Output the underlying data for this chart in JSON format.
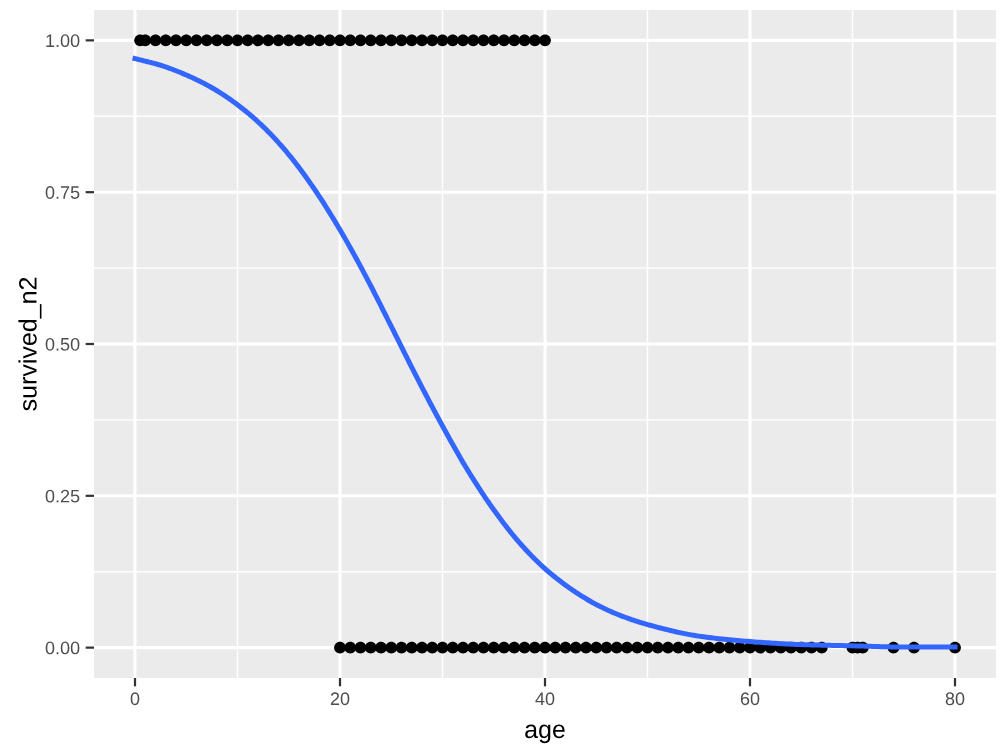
{
  "chart_data": {
    "type": "scatter",
    "xlabel": "age",
    "ylabel": "survived_n2",
    "xlim": [
      -4,
      84
    ],
    "ylim": [
      -0.05,
      1.05
    ],
    "xticks": [
      0,
      20,
      40,
      60,
      80
    ],
    "yticks": [
      {
        "value": 0,
        "label": "0.00"
      },
      {
        "value": 0.25,
        "label": "0.25"
      },
      {
        "value": 0.5,
        "label": "0.50"
      },
      {
        "value": 0.75,
        "label": "0.75"
      },
      {
        "value": 1,
        "label": "1.00"
      }
    ],
    "grid": true,
    "legend": false,
    "marker": "circle",
    "series": [
      {
        "color": "#000000",
        "x": [
          0.5,
          1,
          2,
          3,
          4,
          5,
          6,
          7,
          8,
          9,
          10,
          11,
          12,
          13,
          14,
          15,
          16,
          17,
          18,
          19,
          20,
          21,
          22,
          23,
          24,
          25,
          26,
          27,
          28,
          29,
          30,
          31,
          32,
          33,
          34,
          35,
          36,
          37,
          38,
          39,
          40
        ],
        "values": [
          1,
          1,
          1,
          1,
          1,
          1,
          1,
          1,
          1,
          1,
          1,
          1,
          1,
          1,
          1,
          1,
          1,
          1,
          1,
          1,
          1,
          1,
          1,
          1,
          1,
          1,
          1,
          1,
          1,
          1,
          1,
          1,
          1,
          1,
          1,
          1,
          1,
          1,
          1,
          1,
          1
        ]
      },
      {
        "color": "#000000",
        "x": [
          20,
          21,
          22,
          23,
          24,
          25,
          26,
          27,
          28,
          29,
          30,
          31,
          32,
          33,
          34,
          35,
          36,
          37,
          38,
          39,
          40,
          41,
          42,
          43,
          44,
          45,
          46,
          47,
          48,
          49,
          50,
          51,
          52,
          53,
          54,
          55,
          56,
          57,
          58,
          59,
          60,
          61,
          62,
          63,
          64,
          65,
          66,
          67,
          70,
          70.5,
          71,
          74,
          76,
          80
        ],
        "values": [
          0,
          0,
          0,
          0,
          0,
          0,
          0,
          0,
          0,
          0,
          0,
          0,
          0,
          0,
          0,
          0,
          0,
          0,
          0,
          0,
          0,
          0,
          0,
          0,
          0,
          0,
          0,
          0,
          0,
          0,
          0,
          0,
          0,
          0,
          0,
          0,
          0,
          0,
          0,
          0,
          0,
          0,
          0,
          0,
          0,
          0,
          0,
          0,
          0,
          0,
          0,
          0,
          0,
          0
        ]
      },
      {
        "type": "line",
        "color": "#3366ff",
        "marker": "none",
        "line_style": "solid",
        "x": [
          0,
          2.5,
          5,
          7.5,
          10,
          12.5,
          15,
          17.5,
          20,
          22.5,
          25,
          27.5,
          30,
          32.5,
          35,
          37.5,
          40,
          42.5,
          45,
          47.5,
          50,
          55,
          60,
          65,
          70,
          75,
          80
        ],
        "values": [
          0.97,
          0.959,
          0.943,
          0.922,
          0.894,
          0.858,
          0.812,
          0.755,
          0.688,
          0.612,
          0.529,
          0.445,
          0.365,
          0.291,
          0.227,
          0.173,
          0.13,
          0.097,
          0.071,
          0.052,
          0.038,
          0.019,
          0.01,
          0.005,
          0.003,
          0.001,
          0.001
        ]
      }
    ]
  }
}
